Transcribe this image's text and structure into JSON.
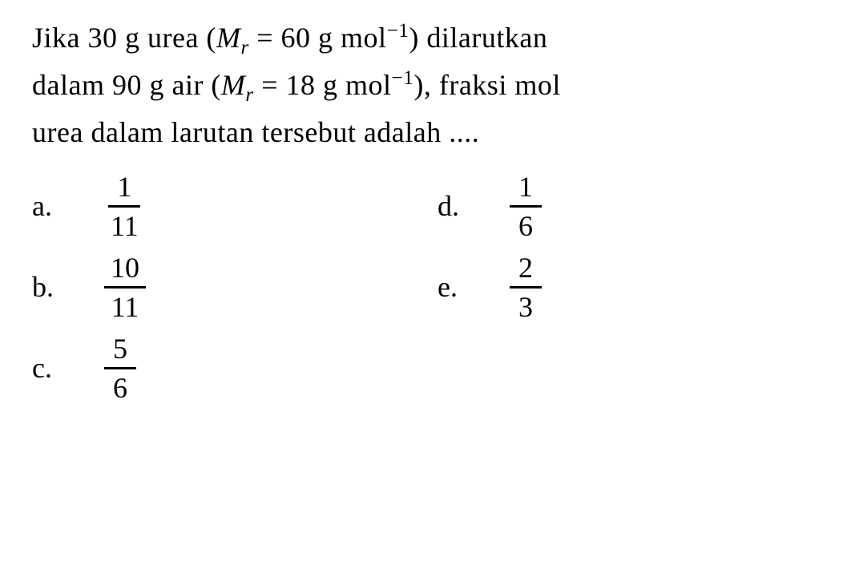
{
  "question": {
    "line1_part1": "Jika 30 g urea (",
    "line1_mr": "M",
    "line1_sub": "r",
    "line1_part2": " = 60 g mol",
    "line1_sup": "−1",
    "line1_part3": ") dilarutkan",
    "line2_part1": "dalam 90 g air (",
    "line2_mr": "M",
    "line2_sub": "r",
    "line2_part2": " = 18 g mol",
    "line2_sup": "−1",
    "line2_part3": "), fraksi mol",
    "line3": "urea dalam larutan tersebut adalah ...."
  },
  "options": {
    "a": {
      "label": "a.",
      "numerator": "1",
      "denominator": "11"
    },
    "b": {
      "label": "b.",
      "numerator": "10",
      "denominator": "11"
    },
    "c": {
      "label": "c.",
      "numerator": "5",
      "denominator": "6"
    },
    "d": {
      "label": "d.",
      "numerator": "1",
      "denominator": "6"
    },
    "e": {
      "label": "e.",
      "numerator": "2",
      "denominator": "3"
    }
  },
  "styling": {
    "background_color": "#ffffff",
    "text_color": "#000000",
    "font_family": "Georgia, Times New Roman, serif",
    "question_fontsize": 36,
    "option_fontsize": 36,
    "fraction_border_width": 3
  }
}
